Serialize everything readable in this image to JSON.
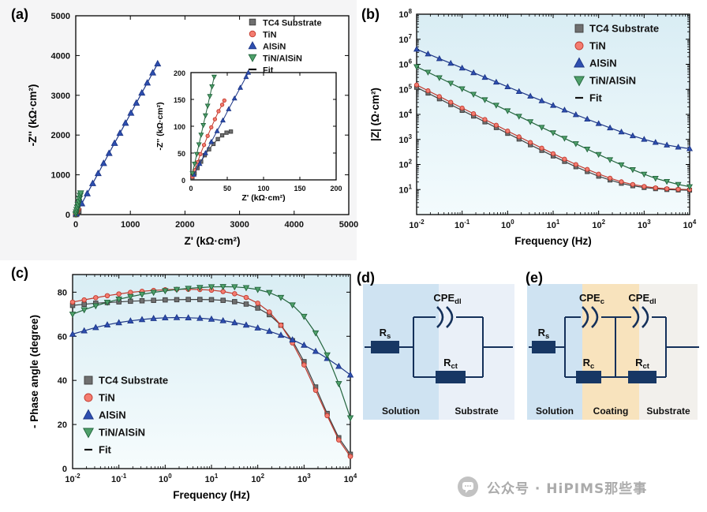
{
  "panels": {
    "a": {
      "label": "(a)"
    },
    "b": {
      "label": "(b)"
    },
    "c": {
      "label": "(c)"
    },
    "d": {
      "label": "(d)"
    },
    "e": {
      "label": "(e)"
    }
  },
  "watermark": {
    "text": "公众号 · HiPIMS那些事"
  },
  "colors": {
    "tc4": "#6f6f6f",
    "tc4_edge": "#3e3e3e",
    "tin": "#f47c70",
    "tin_edge": "#c03a2e",
    "alsin": "#2e4fb0",
    "alsin_edge": "#1c3586",
    "tin_alsin": "#4ea06a",
    "tin_alsin_edge": "#22643c",
    "fit": "#111111",
    "solution_region": "#cfe3f2",
    "coating_region": "#f8e3bd",
    "substrate_region": "#eaf0f8",
    "circuit_navy": "#173764"
  },
  "circuits": {
    "d": {
      "rs": {
        "main": "R",
        "sub": "s"
      },
      "cpe_dl": {
        "main": "CPE",
        "sub": "dl"
      },
      "rct": {
        "main": "R",
        "sub": "ct"
      },
      "regions": {
        "solution": "Solution",
        "substrate": "Substrate"
      }
    },
    "e": {
      "rs": {
        "main": "R",
        "sub": "s"
      },
      "cpe_c": {
        "main": "CPE",
        "sub": "c"
      },
      "rc": {
        "main": "R",
        "sub": "c"
      },
      "cpe_dl": {
        "main": "CPE",
        "sub": "dl"
      },
      "rct": {
        "main": "R",
        "sub": "ct"
      },
      "regions": {
        "solution": "Solution",
        "coating": "Coating",
        "substrate": "Substrate"
      }
    }
  },
  "chart_data": [
    {
      "id": "chart-a",
      "render": "xy",
      "type": "scatter",
      "title": "",
      "xlabel": "Z' (kΩ·cm²)",
      "ylabel": "-Z'' (kΩ·cm²)",
      "xscale": "linear",
      "yscale": "linear",
      "xlim": [
        0,
        5000
      ],
      "ylim": [
        0,
        5000
      ],
      "xticks": [
        0,
        1000,
        2000,
        3000,
        4000,
        5000
      ],
      "yticks": [
        0,
        1000,
        2000,
        3000,
        4000,
        5000
      ],
      "layout": {
        "pl": 88,
        "pt": 16,
        "pw": 346,
        "ph": 252
      },
      "ms": 3,
      "tfs": 11,
      "lfs": 13.5,
      "ylabelOff": 50,
      "plotBg": "#ffffff",
      "legend": {
        "lx": 312,
        "ly": 24,
        "dy": 15,
        "fs": 11,
        "ms": 3.8
      },
      "series": [
        {
          "name": "TC4 Substrate",
          "marker": "square",
          "color": "#6f6f6f",
          "edge": "#3e3e3e",
          "points": [
            [
              1,
              2
            ],
            [
              6,
              14
            ],
            [
              12,
              28
            ],
            [
              20,
              44
            ],
            [
              28,
              58
            ],
            [
              36,
              70
            ],
            [
              44,
              80
            ],
            [
              50,
              86
            ],
            [
              55,
              90
            ]
          ]
        },
        {
          "name": "TiN",
          "marker": "circle",
          "color": "#f47c70",
          "edge": "#c03a2e",
          "points": [
            [
              1,
              3
            ],
            [
              6,
              18
            ],
            [
              12,
              38
            ],
            [
              18,
              58
            ],
            [
              25,
              80
            ],
            [
              31,
              100
            ],
            [
              37,
              120
            ],
            [
              42,
              135
            ],
            [
              46,
              148
            ]
          ]
        },
        {
          "name": "AlSiN",
          "marker": "triangle-up",
          "color": "#2e4fb0",
          "edge": "#1c3586",
          "points": [
            [
              10,
              25
            ],
            [
              110,
              278
            ],
            [
              210,
              531
            ],
            [
              310,
              784
            ],
            [
              410,
              1037
            ],
            [
              510,
              1290
            ],
            [
              610,
              1543
            ],
            [
              710,
              1796
            ],
            [
              810,
              2049
            ],
            [
              910,
              2302
            ],
            [
              1010,
              2555
            ],
            [
              1110,
              2808
            ],
            [
              1210,
              3061
            ],
            [
              1310,
              3314
            ],
            [
              1410,
              3567
            ],
            [
              1500,
              3795
            ]
          ]
        },
        {
          "name": "TiN/AlSiN",
          "marker": "triangle-down",
          "color": "#4ea06a",
          "edge": "#22643c",
          "points": [
            [
              2,
              12
            ],
            [
              10,
              60
            ],
            [
              20,
              120
            ],
            [
              30,
              180
            ],
            [
              42,
              252
            ],
            [
              55,
              330
            ],
            [
              68,
              408
            ],
            [
              80,
              480
            ],
            [
              90,
              540
            ]
          ]
        },
        {
          "name": "Fit",
          "marker": "dash",
          "color": "#111111"
        }
      ]
    },
    {
      "id": "chart-a-inset",
      "render": "xy",
      "type": "scatter",
      "title": "",
      "xlabel": "Z' (kΩ·cm²)",
      "ylabel": "-Z'' (kΩ·cm²)",
      "xscale": "linear",
      "yscale": "linear",
      "xlim": [
        0,
        200
      ],
      "ylim": [
        0,
        200
      ],
      "xticks": [
        0,
        50,
        100,
        150,
        200
      ],
      "yticks": [
        0,
        50,
        100,
        150,
        200
      ],
      "layout": {
        "pl": 56,
        "pt": 12,
        "pw": 184,
        "ph": 136
      },
      "ms": 2.2,
      "tfs": 9,
      "lfs": 10.5,
      "tickLen": 4,
      "xlabelOff": 26,
      "ylabelOff": 36,
      "lw": 1,
      "plotBg": "#ffffff",
      "series": [
        {
          "name": "TC4 Substrate",
          "marker": "square",
          "color": "#6f6f6f",
          "edge": "#3e3e3e",
          "points": [
            [
              2,
              4
            ],
            [
              5,
              12
            ],
            [
              9,
              22
            ],
            [
              14,
              34
            ],
            [
              19,
              46
            ],
            [
              25,
              57
            ],
            [
              31,
              67
            ],
            [
              37,
              76
            ],
            [
              43,
              83
            ],
            [
              49,
              88
            ],
            [
              55,
              90
            ]
          ]
        },
        {
          "name": "TiN",
          "marker": "circle",
          "color": "#f47c70",
          "edge": "#c03a2e",
          "points": [
            [
              2,
              6
            ],
            [
              5,
              18
            ],
            [
              9,
              33
            ],
            [
              13,
              48
            ],
            [
              18,
              65
            ],
            [
              23,
              82
            ],
            [
              28,
              98
            ],
            [
              33,
              113
            ],
            [
              38,
              128
            ],
            [
              43,
              140
            ],
            [
              46,
              148
            ]
          ]
        },
        {
          "name": "AlSiN",
          "marker": "triangle-up",
          "color": "#2e4fb0",
          "edge": "#1c3586",
          "points": [
            [
              4,
              10
            ],
            [
              12,
              30
            ],
            [
              20,
              50
            ],
            [
              28,
              71
            ],
            [
              36,
              91
            ],
            [
              44,
              111
            ],
            [
              52,
              132
            ],
            [
              60,
              152
            ],
            [
              68,
              172
            ],
            [
              76,
              192
            ],
            [
              79,
              200
            ]
          ]
        },
        {
          "name": "TiN/AlSiN",
          "marker": "triangle-down",
          "color": "#4ea06a",
          "edge": "#22643c",
          "points": [
            [
              2,
              12
            ],
            [
              5,
              30
            ],
            [
              8,
              48
            ],
            [
              11,
              66
            ],
            [
              14,
              84
            ],
            [
              17,
              102
            ],
            [
              20,
              120
            ],
            [
              23,
              138
            ],
            [
              26,
              156
            ],
            [
              29,
              174
            ],
            [
              32,
              192
            ]
          ]
        }
      ]
    },
    {
      "id": "chart-b",
      "render": "xy",
      "type": "line",
      "title": "",
      "xlabel": "Frequency (Hz)",
      "ylabel": "|Z| (Ω·cm²)",
      "xscale": "log",
      "yscale": "log",
      "xlim": [
        0.01,
        10000
      ],
      "ylim": [
        1,
        100000000
      ],
      "xticks": [
        -2,
        -1,
        0,
        1,
        2,
        3,
        4
      ],
      "yticks": [
        1,
        2,
        3,
        4,
        5,
        6,
        7,
        8
      ],
      "layout": {
        "pl": 78,
        "pt": 14,
        "pw": 346,
        "ph": 254
      },
      "ms": 2.6,
      "tfs": 11,
      "lfs": 13.5,
      "ylabelOff": 48,
      "bg": [
        "#d9edf4",
        "#f3fbfd"
      ],
      "legend": {
        "lx": 284,
        "ly": 32,
        "dy": 22,
        "fs": 13,
        "ms": 5
      },
      "x": [
        0.01,
        0.0178,
        0.0316,
        0.0562,
        0.1,
        0.178,
        0.316,
        0.562,
        1,
        1.78,
        3.16,
        5.62,
        10,
        17.8,
        31.6,
        56.2,
        100,
        178,
        316,
        562,
        1000,
        1780,
        3160,
        5620,
        10000
      ],
      "series": [
        {
          "name": "TC4 Substrate",
          "marker": "square",
          "color": "#6f6f6f",
          "edge": "#3e3e3e",
          "values": [
            120000,
            70600,
            41700,
            24500,
            14400,
            8520,
            5010,
            2960,
            1740,
            1030,
            609,
            363,
            218,
            132,
            81,
            52,
            34,
            24,
            17.7,
            14.1,
            12,
            10.8,
            10,
            9.6,
            9.4
          ]
        },
        {
          "name": "TiN",
          "marker": "circle",
          "color": "#f47c70",
          "edge": "#c03a2e",
          "values": [
            150000,
            88200,
            52100,
            30600,
            18000,
            10700,
            6260,
            3700,
            2170,
            1280,
            760,
            452,
            271,
            164,
            100,
            64,
            41.5,
            28.5,
            20.5,
            16,
            13.3,
            11.7,
            10.8,
            10.3,
            10
          ]
        },
        {
          "name": "AlSiN",
          "marker": "triangle-up",
          "color": "#2e4fb0",
          "edge": "#1c3586",
          "values": [
            4000000,
            2600000,
            1690000,
            1100000,
            712000,
            462000,
            301000,
            195000,
            127000,
            82300,
            53700,
            35100,
            23000,
            14900,
            9780,
            6470,
            4300,
            2900,
            1990,
            1400,
            1010,
            762,
            601,
            495,
            427
          ]
        },
        {
          "name": "TiN/AlSiN",
          "marker": "triangle-down",
          "color": "#4ea06a",
          "edge": "#22643c",
          "values": [
            800000,
            482000,
            291000,
            175000,
            105000,
            63500,
            38300,
            23100,
            13900,
            8400,
            5100,
            3050,
            1840,
            1110,
            675,
            410,
            251,
            155,
            97,
            62,
            41,
            28,
            21,
            16,
            13
          ]
        },
        {
          "name": "Fit",
          "marker": "dash",
          "color": "#111111"
        }
      ]
    },
    {
      "id": "chart-c",
      "render": "xy",
      "type": "line",
      "title": "",
      "xlabel": "Frequency (Hz)",
      "ylabel": "- Phase angle (degree)",
      "xscale": "log",
      "yscale": "linear",
      "xlim": [
        0.01,
        10000
      ],
      "ylim": [
        0,
        88
      ],
      "xticks": [
        -2,
        -1,
        0,
        1,
        2,
        3,
        4
      ],
      "yticks": [
        0,
        20,
        40,
        60,
        80
      ],
      "layout": {
        "pl": 84,
        "pt": 16,
        "pw": 352,
        "ph": 246
      },
      "ms": 2.8,
      "tfs": 11,
      "lfs": 13.5,
      "ylabelOff": 44,
      "bg": [
        "#d9edf4",
        "#f6fcfd"
      ],
      "legend": {
        "lx": 104,
        "ly": 150,
        "dy": 22,
        "fs": 13,
        "ms": 5
      },
      "x": [
        0.01,
        0.0178,
        0.0316,
        0.0562,
        0.1,
        0.178,
        0.316,
        0.562,
        1,
        1.78,
        3.16,
        5.62,
        10,
        17.8,
        31.6,
        56.2,
        100,
        178,
        316,
        562,
        1000,
        1780,
        3160,
        5620,
        10000
      ],
      "series": [
        {
          "name": "TC4 Substrate",
          "marker": "square",
          "color": "#6f6f6f",
          "edge": "#3e3e3e",
          "values": [
            74,
            74.5,
            75,
            75.3,
            75.6,
            75.9,
            76.1,
            76.3,
            76.5,
            76.6,
            76.7,
            76.7,
            76.6,
            76.3,
            75.7,
            74.6,
            72.8,
            69.8,
            65,
            58,
            48.5,
            37,
            25,
            14,
            6.5
          ]
        },
        {
          "name": "TiN",
          "marker": "circle",
          "color": "#f47c70",
          "edge": "#c03a2e",
          "values": [
            75.5,
            76.5,
            77.5,
            78.4,
            79.2,
            79.9,
            80.4,
            80.8,
            81.1,
            81.3,
            81.3,
            81.2,
            80.9,
            80.3,
            79.3,
            77.6,
            75,
            71,
            65,
            57,
            47,
            35.5,
            24,
            13,
            5.5
          ]
        },
        {
          "name": "AlSiN",
          "marker": "triangle-up",
          "color": "#2e4fb0",
          "edge": "#1c3586",
          "values": [
            61,
            62.5,
            64,
            65.2,
            66.2,
            67,
            67.6,
            68.1,
            68.4,
            68.5,
            68.4,
            68.2,
            67.8,
            67.1,
            66.2,
            65.1,
            63.8,
            62.3,
            60.5,
            58.4,
            56,
            53.2,
            50,
            46.4,
            42.5
          ]
        },
        {
          "name": "TiN/AlSiN",
          "marker": "triangle-down",
          "color": "#4ea06a",
          "edge": "#22643c",
          "values": [
            70,
            72,
            73.8,
            75.4,
            76.8,
            78,
            79,
            79.9,
            80.6,
            81.2,
            81.7,
            82.1,
            82.4,
            82.5,
            82.4,
            82,
            81.2,
            79.8,
            77.6,
            74.2,
            69,
            61.5,
            51.5,
            38.5,
            23
          ]
        },
        {
          "name": "Fit",
          "marker": "dash",
          "color": "#111111"
        }
      ]
    }
  ]
}
